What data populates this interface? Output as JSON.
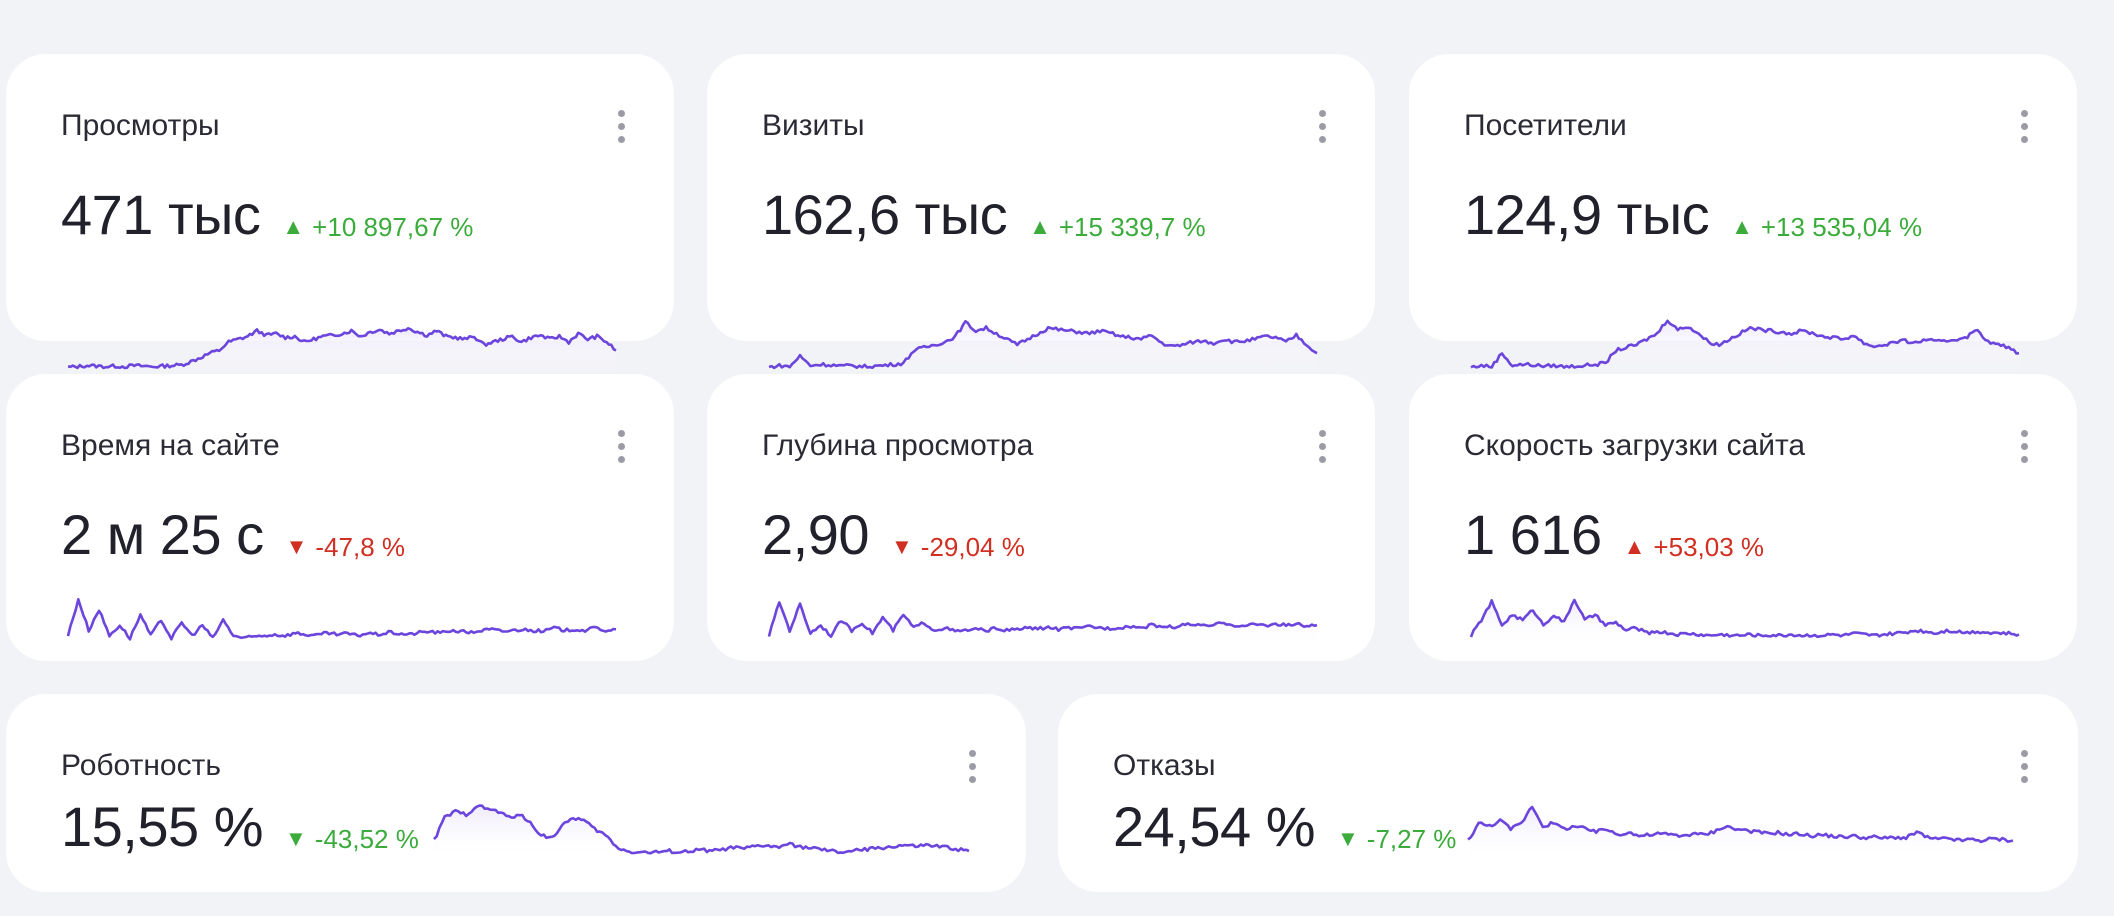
{
  "colors": {
    "line": "#6b45dc",
    "fill": "#ede8fb",
    "good": "#3bab3b",
    "bad": "#d12f21"
  },
  "cards": [
    {
      "title": "Просмотры",
      "value": "471 тыс",
      "arrow": "▲",
      "delta": "+10 897,67 %",
      "tone": "good",
      "series": [
        0.05,
        0.06,
        0.08,
        0.07,
        0.06,
        0.07,
        0.06,
        0.08,
        0.07,
        0.06,
        0.07,
        0.08,
        0.09,
        0.15,
        0.22,
        0.3,
        0.35,
        0.5,
        0.55,
        0.6,
        0.7,
        0.62,
        0.65,
        0.58,
        0.6,
        0.5,
        0.55,
        0.6,
        0.62,
        0.65,
        0.7,
        0.6,
        0.68,
        0.72,
        0.65,
        0.7,
        0.75,
        0.68,
        0.62,
        0.7,
        0.6,
        0.58,
        0.55,
        0.6,
        0.45,
        0.5,
        0.55,
        0.6,
        0.5,
        0.58,
        0.62,
        0.55,
        0.6,
        0.5,
        0.65,
        0.55,
        0.6,
        0.5,
        0.35
      ]
    },
    {
      "title": "Визиты",
      "value": "162,6 тыс",
      "arrow": "▲",
      "delta": "+15 339,7 %",
      "tone": "good",
      "series": [
        0.05,
        0.08,
        0.06,
        0.25,
        0.08,
        0.1,
        0.09,
        0.07,
        0.08,
        0.06,
        0.07,
        0.08,
        0.1,
        0.12,
        0.35,
        0.4,
        0.45,
        0.5,
        0.6,
        0.85,
        0.7,
        0.75,
        0.65,
        0.55,
        0.45,
        0.55,
        0.65,
        0.75,
        0.72,
        0.7,
        0.68,
        0.65,
        0.7,
        0.66,
        0.6,
        0.58,
        0.55,
        0.62,
        0.48,
        0.42,
        0.45,
        0.5,
        0.52,
        0.48,
        0.55,
        0.5,
        0.52,
        0.55,
        0.6,
        0.58,
        0.5,
        0.62,
        0.45,
        0.3
      ]
    },
    {
      "title": "Посетители",
      "value": "124,9 тыс",
      "arrow": "▲",
      "delta": "+13 535,04 %",
      "tone": "good",
      "series": [
        0.05,
        0.08,
        0.06,
        0.3,
        0.08,
        0.1,
        0.09,
        0.07,
        0.08,
        0.06,
        0.07,
        0.08,
        0.1,
        0.12,
        0.35,
        0.4,
        0.45,
        0.55,
        0.65,
        0.9,
        0.72,
        0.78,
        0.65,
        0.5,
        0.45,
        0.55,
        0.65,
        0.75,
        0.72,
        0.7,
        0.68,
        0.65,
        0.7,
        0.66,
        0.6,
        0.58,
        0.55,
        0.62,
        0.48,
        0.42,
        0.45,
        0.5,
        0.52,
        0.48,
        0.55,
        0.5,
        0.52,
        0.55,
        0.6,
        0.72,
        0.5,
        0.45,
        0.4,
        0.3
      ]
    },
    {
      "title": "Время на сайте",
      "value": "2 м 25 с",
      "arrow": "▼",
      "delta": "-47,8 %",
      "tone": "bad",
      "series": [
        0.2,
        0.9,
        0.3,
        0.7,
        0.2,
        0.4,
        0.15,
        0.6,
        0.2,
        0.5,
        0.15,
        0.45,
        0.2,
        0.4,
        0.15,
        0.5,
        0.2,
        0.15,
        0.18,
        0.2,
        0.22,
        0.2,
        0.25,
        0.22,
        0.2,
        0.25,
        0.22,
        0.24,
        0.2,
        0.25,
        0.22,
        0.26,
        0.24,
        0.22,
        0.26,
        0.28,
        0.25,
        0.3,
        0.28,
        0.26,
        0.3,
        0.32,
        0.28,
        0.3,
        0.32,
        0.3,
        0.28,
        0.35,
        0.3,
        0.32,
        0.3,
        0.35,
        0.3,
        0.32
      ]
    },
    {
      "title": "Глубина просмотра",
      "value": "2,90",
      "arrow": "▼",
      "delta": "-29,04 %",
      "tone": "bad",
      "series": [
        0.2,
        0.85,
        0.3,
        0.8,
        0.25,
        0.4,
        0.2,
        0.5,
        0.3,
        0.45,
        0.25,
        0.55,
        0.3,
        0.6,
        0.35,
        0.45,
        0.3,
        0.35,
        0.28,
        0.3,
        0.32,
        0.3,
        0.34,
        0.3,
        0.32,
        0.35,
        0.33,
        0.36,
        0.32,
        0.35,
        0.33,
        0.38,
        0.35,
        0.34,
        0.36,
        0.38,
        0.35,
        0.4,
        0.38,
        0.36,
        0.4,
        0.42,
        0.38,
        0.4,
        0.45,
        0.4,
        0.38,
        0.42,
        0.4,
        0.42,
        0.4,
        0.42,
        0.38,
        0.4
      ]
    },
    {
      "title": "Скорость загрузки сайта",
      "value": "1 616",
      "arrow": "▲",
      "delta": "+53,03 %",
      "tone": "bad",
      "series": [
        0.2,
        0.5,
        0.85,
        0.4,
        0.6,
        0.5,
        0.7,
        0.4,
        0.6,
        0.45,
        0.9,
        0.5,
        0.6,
        0.4,
        0.45,
        0.3,
        0.35,
        0.25,
        0.28,
        0.25,
        0.22,
        0.24,
        0.22,
        0.2,
        0.22,
        0.21,
        0.2,
        0.22,
        0.2,
        0.21,
        0.2,
        0.22,
        0.2,
        0.21,
        0.2,
        0.22,
        0.2,
        0.24,
        0.22,
        0.2,
        0.22,
        0.24,
        0.26,
        0.3,
        0.28,
        0.25,
        0.3,
        0.28,
        0.26,
        0.28,
        0.26,
        0.25,
        0.24,
        0.22
      ]
    },
    {
      "title": "Роботность",
      "value": "15,55 %",
      "arrow": "▼",
      "delta": "-43,52 %",
      "tone": "good",
      "series": [
        0.3,
        0.7,
        0.8,
        0.75,
        0.9,
        0.85,
        0.8,
        0.7,
        0.75,
        0.6,
        0.4,
        0.35,
        0.55,
        0.7,
        0.65,
        0.5,
        0.4,
        0.2,
        0.12,
        0.1,
        0.1,
        0.1,
        0.12,
        0.1,
        0.12,
        0.14,
        0.12,
        0.15,
        0.18,
        0.16,
        0.2,
        0.22,
        0.18,
        0.24,
        0.2,
        0.18,
        0.15,
        0.12,
        0.1,
        0.12,
        0.14,
        0.16,
        0.18,
        0.2,
        0.22,
        0.2,
        0.22,
        0.2,
        0.18,
        0.15,
        0.12
      ]
    },
    {
      "title": "Отказы",
      "value": "24,54 %",
      "arrow": "▼",
      "delta": "-7,27 %",
      "tone": "good",
      "series": [
        0.3,
        0.6,
        0.55,
        0.65,
        0.5,
        0.6,
        0.9,
        0.55,
        0.6,
        0.5,
        0.55,
        0.5,
        0.45,
        0.5,
        0.4,
        0.45,
        0.38,
        0.4,
        0.42,
        0.4,
        0.38,
        0.42,
        0.4,
        0.45,
        0.55,
        0.5,
        0.48,
        0.45,
        0.42,
        0.44,
        0.4,
        0.42,
        0.38,
        0.4,
        0.38,
        0.36,
        0.38,
        0.35,
        0.36,
        0.34,
        0.36,
        0.34,
        0.45,
        0.35,
        0.32,
        0.34,
        0.3,
        0.32,
        0.3,
        0.33,
        0.32,
        0.3
      ]
    }
  ]
}
